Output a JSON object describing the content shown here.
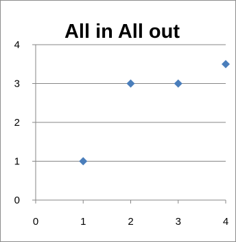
{
  "chart_data": {
    "type": "scatter",
    "title": "All in All out",
    "xlabel": "",
    "ylabel": "",
    "xlim": [
      0,
      4
    ],
    "ylim": [
      0,
      4
    ],
    "x_ticks": [
      0,
      1,
      2,
      3,
      4
    ],
    "y_ticks": [
      0,
      1,
      2,
      3,
      4
    ],
    "grid": "horizontal",
    "legend": "none",
    "series": [
      {
        "marker": "diamond",
        "color": "#4a7ebb",
        "points": [
          {
            "x": 1,
            "y": 1
          },
          {
            "x": 2,
            "y": 3
          },
          {
            "x": 3,
            "y": 3
          },
          {
            "x": 4,
            "y": 3.5
          }
        ]
      }
    ]
  },
  "colors": {
    "marker": "#4a7ebb",
    "gridline": "#868686",
    "axis": "#868686"
  }
}
